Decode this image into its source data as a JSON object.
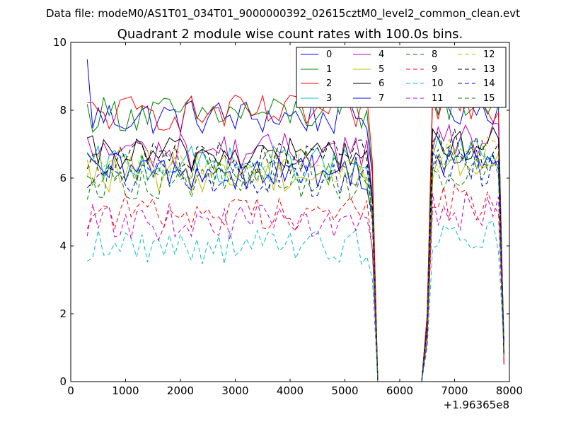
{
  "chart_data": {
    "type": "line",
    "suptitle": "Data file: modeM0/AS1T01_034T01_9000000392_02615cztM0_level2_common_clean.evt",
    "title": "Quadrant 2 module wise count rates with 100.0s bins.",
    "xlabel": "",
    "ylabel": "",
    "xlim": [
      0,
      8000
    ],
    "ylim": [
      0,
      10
    ],
    "x_ticks": [
      "0",
      "1000",
      "2000",
      "3000",
      "4000",
      "5000",
      "6000",
      "7000",
      "8000"
    ],
    "y_ticks": [
      "0",
      "2",
      "4",
      "6",
      "8",
      "10"
    ],
    "x_offset_label": "+1.96365e8",
    "legend_position": "top-right",
    "grid": false,
    "series": [
      {
        "name": "0",
        "color": "#0000ff",
        "dash": "solid",
        "base": 7.8
      },
      {
        "name": "1",
        "color": "#008000",
        "dash": "solid",
        "base": 7.9
      },
      {
        "name": "2",
        "color": "#ff0000",
        "dash": "solid",
        "base": 7.9
      },
      {
        "name": "3",
        "color": "#00bfbf",
        "dash": "solid",
        "base": 6.4
      },
      {
        "name": "4",
        "color": "#bf00bf",
        "dash": "solid",
        "base": 6.8
      },
      {
        "name": "5",
        "color": "#bfbf00",
        "dash": "solid",
        "base": 6.1
      },
      {
        "name": "6",
        "color": "#000000",
        "dash": "solid",
        "base": 6.7
      },
      {
        "name": "7",
        "color": "#0000ff",
        "dash": "solid",
        "base": 6.2
      },
      {
        "name": "8",
        "color": "#008000",
        "dash": "dashed",
        "base": 5.9
      },
      {
        "name": "9",
        "color": "#ff0000",
        "dash": "dashed",
        "base": 5.0
      },
      {
        "name": "10",
        "color": "#00bfbf",
        "dash": "dashed",
        "base": 4.0
      },
      {
        "name": "11",
        "color": "#bf00bf",
        "dash": "dashed",
        "base": 4.7
      },
      {
        "name": "12",
        "color": "#bfbf00",
        "dash": "dashed",
        "base": 6.4
      },
      {
        "name": "13",
        "color": "#000000",
        "dash": "dashed",
        "base": 6.6
      },
      {
        "name": "14",
        "color": "#0000ff",
        "dash": "dashed",
        "base": 6.0
      },
      {
        "name": "15",
        "color": "#008000",
        "dash": "dashed",
        "base": 6.3
      }
    ]
  }
}
